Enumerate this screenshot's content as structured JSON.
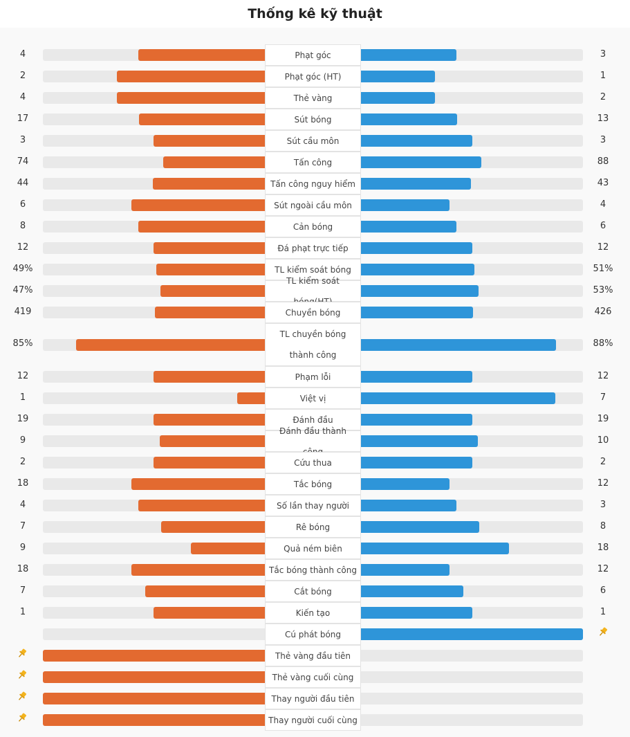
{
  "title": "Thống kê kỹ thuật",
  "colors": {
    "home": "#e36a30",
    "away": "#2e95d9",
    "track": "#e9e9e9",
    "pin": "#f3b41f"
  },
  "stats": [
    {
      "label": "Phạt góc",
      "home": "4",
      "away": "3",
      "home_share": 0.571,
      "away_share": 0.429
    },
    {
      "label": "Phạt góc (HT)",
      "home": "2",
      "away": "1",
      "home_share": 0.667,
      "away_share": 0.333
    },
    {
      "label": "Thẻ vàng",
      "home": "4",
      "away": "2",
      "home_share": 0.667,
      "away_share": 0.333
    },
    {
      "label": "Sút bóng",
      "home": "17",
      "away": "13",
      "home_share": 0.567,
      "away_share": 0.433
    },
    {
      "label": "Sút cầu môn",
      "home": "3",
      "away": "3",
      "home_share": 0.5,
      "away_share": 0.5
    },
    {
      "label": "Tấn công",
      "home": "74",
      "away": "88",
      "home_share": 0.457,
      "away_share": 0.543
    },
    {
      "label": "Tấn công nguy hiểm",
      "home": "44",
      "away": "43",
      "home_share": 0.506,
      "away_share": 0.494
    },
    {
      "label": "Sút ngoài cầu môn",
      "home": "6",
      "away": "4",
      "home_share": 0.6,
      "away_share": 0.4
    },
    {
      "label": "Cản bóng",
      "home": "8",
      "away": "6",
      "home_share": 0.571,
      "away_share": 0.429
    },
    {
      "label": "Đá phạt trực tiếp",
      "home": "12",
      "away": "12",
      "home_share": 0.5,
      "away_share": 0.5
    },
    {
      "label": "TL kiểm soát bóng",
      "home": "49%",
      "away": "51%",
      "home_share": 0.49,
      "away_share": 0.51
    },
    {
      "label": "TL kiểm soát bóng(HT)",
      "home": "47%",
      "away": "53%",
      "home_share": 0.47,
      "away_share": 0.53
    },
    {
      "label": "Chuyền bóng",
      "home": "419",
      "away": "426",
      "home_share": 0.496,
      "away_share": 0.504
    },
    {
      "label": "TL chuyền bóng thành công",
      "home": "85%",
      "away": "88%",
      "home_share": 0.85,
      "away_share": 0.88
    },
    {
      "label": "Phạm lỗi",
      "home": "12",
      "away": "12",
      "home_share": 0.5,
      "away_share": 0.5
    },
    {
      "label": "Việt vị",
      "home": "1",
      "away": "7",
      "home_share": 0.125,
      "away_share": 0.875
    },
    {
      "label": "Đánh đầu",
      "home": "19",
      "away": "19",
      "home_share": 0.5,
      "away_share": 0.5
    },
    {
      "label": "Đánh đầu thành công",
      "home": "9",
      "away": "10",
      "home_share": 0.474,
      "away_share": 0.526
    },
    {
      "label": "Cứu thua",
      "home": "2",
      "away": "2",
      "home_share": 0.5,
      "away_share": 0.5
    },
    {
      "label": "Tắc bóng",
      "home": "18",
      "away": "12",
      "home_share": 0.6,
      "away_share": 0.4
    },
    {
      "label": "Số lần thay người",
      "home": "4",
      "away": "3",
      "home_share": 0.571,
      "away_share": 0.429
    },
    {
      "label": "Rê bóng",
      "home": "7",
      "away": "8",
      "home_share": 0.467,
      "away_share": 0.533
    },
    {
      "label": "Quả ném biên",
      "home": "9",
      "away": "18",
      "home_share": 0.333,
      "away_share": 0.667
    },
    {
      "label": "Tắc bóng thành công",
      "home": "18",
      "away": "12",
      "home_share": 0.6,
      "away_share": 0.4
    },
    {
      "label": "Cắt bóng",
      "home": "7",
      "away": "6",
      "home_share": 0.538,
      "away_share": 0.462
    },
    {
      "label": "Kiến tạo",
      "home": "1",
      "away": "1",
      "home_share": 0.5,
      "away_share": 0.5
    },
    {
      "label": "Cú phát bóng",
      "home": "",
      "away": "",
      "home_share": 0,
      "away_share": 1,
      "pin": "away"
    },
    {
      "label": "Thẻ vàng đầu tiên",
      "home": "",
      "away": "",
      "home_share": 1,
      "away_share": 0,
      "pin": "home"
    },
    {
      "label": "Thẻ vàng cuối cùng",
      "home": "",
      "away": "",
      "home_share": 1,
      "away_share": 0,
      "pin": "home"
    },
    {
      "label": "Thay người đầu tiên",
      "home": "",
      "away": "",
      "home_share": 1,
      "away_share": 0,
      "pin": "home"
    },
    {
      "label": "Thay người cuối cùng",
      "home": "",
      "away": "",
      "home_share": 1,
      "away_share": 0,
      "pin": "home"
    }
  ]
}
